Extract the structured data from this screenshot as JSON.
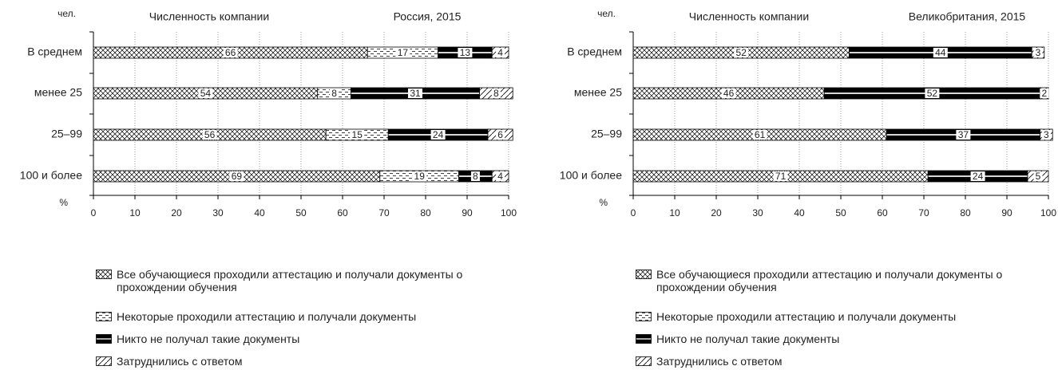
{
  "chart_data": [
    {
      "type": "bar",
      "orientation": "horizontal",
      "title": "Численность компании",
      "subtitle": "Россия, 2015",
      "ylabel": "чел.",
      "xlabel": "%",
      "categories": [
        "В среднем",
        "менее 25",
        "25–99",
        "100 и более"
      ],
      "series": [
        {
          "name": "Все обучающиеся проходили аттестацию и получали документы о прохождении обучения",
          "pattern": "crosshatch",
          "values": [
            66,
            54,
            56,
            69
          ]
        },
        {
          "name": "Некоторые проходили аттестацию и получали документы",
          "pattern": "dashes",
          "values": [
            17,
            8,
            15,
            19
          ]
        },
        {
          "name": "Никто не получал такие документы",
          "pattern": "stripes",
          "values": [
            13,
            31,
            24,
            8
          ]
        },
        {
          "name": "Затруднились с ответом",
          "pattern": "diagonal",
          "values": [
            4,
            8,
            6,
            4
          ]
        }
      ],
      "xlim": [
        0,
        100
      ],
      "xticks": [
        0,
        10,
        20,
        30,
        40,
        50,
        60,
        70,
        80,
        90,
        100
      ],
      "grid": true
    },
    {
      "type": "bar",
      "orientation": "horizontal",
      "title": "Численность компании",
      "subtitle": "Великобритания, 2015",
      "ylabel": "чел.",
      "xlabel": "%",
      "categories": [
        "В среднем",
        "менее 25",
        "25–99",
        "100 и более"
      ],
      "series": [
        {
          "name": "Все обучающиеся проходили аттестацию и получали документы о прохождении обучения",
          "pattern": "crosshatch",
          "values": [
            52,
            46,
            61,
            71
          ]
        },
        {
          "name": "Некоторые проходили аттестацию и получали документы",
          "pattern": "dashes",
          "values": [
            null,
            null,
            null,
            null
          ]
        },
        {
          "name": "Никто не получал такие документы",
          "pattern": "stripes",
          "values": [
            44,
            52,
            37,
            24
          ]
        },
        {
          "name": "Затруднились с ответом",
          "pattern": "diagonal",
          "values": [
            3,
            2,
            3,
            5
          ]
        }
      ],
      "xlim": [
        0,
        100
      ],
      "xticks": [
        0,
        10,
        20,
        30,
        40,
        50,
        60,
        70,
        80,
        90,
        100
      ],
      "grid": true
    }
  ]
}
